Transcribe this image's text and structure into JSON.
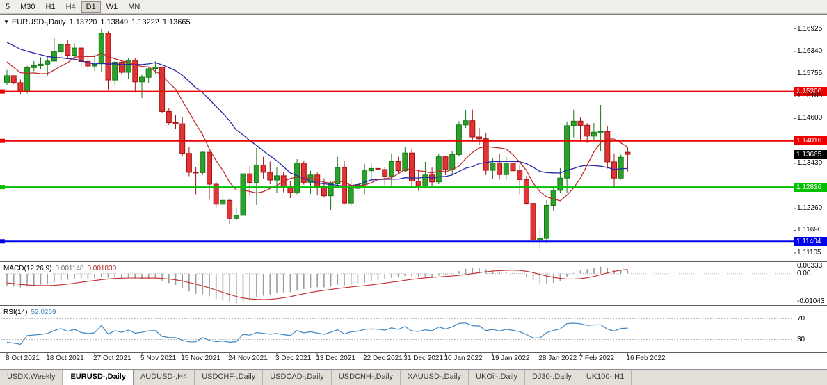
{
  "toolbar": {
    "timeframes": [
      {
        "label": "5",
        "active": false
      },
      {
        "label": "M30",
        "active": false
      },
      {
        "label": "H1",
        "active": false
      },
      {
        "label": "H4",
        "active": false
      },
      {
        "label": "D1",
        "active": true
      },
      {
        "label": "W1",
        "active": false
      },
      {
        "label": "MN",
        "active": false
      }
    ]
  },
  "header": {
    "collapse_icon": "▼",
    "symbol": "EURUSD-,Daily",
    "open": "1.13720",
    "high": "1.13849",
    "low": "1.13222",
    "close": "1.13665"
  },
  "price_axis": {
    "labels": [
      {
        "text": "1.16925",
        "value": 1.16925
      },
      {
        "text": "1.16340",
        "value": 1.1634
      },
      {
        "text": "1.15755",
        "value": 1.15755
      },
      {
        "text": "1.15185",
        "value": 1.15185
      },
      {
        "text": "1.14600",
        "value": 1.146
      },
      {
        "text": "1.13430",
        "value": 1.1343
      },
      {
        "text": "1.12260",
        "value": 1.1226
      },
      {
        "text": "1.11690",
        "value": 1.1169
      },
      {
        "text": "1.11105",
        "value": 1.11105
      }
    ]
  },
  "indicators": {
    "macd": {
      "label": "MACD(12,26,9)",
      "value_main": "0.001148",
      "value_signal": "0.001830",
      "axis_max": {
        "text": "0.00333",
        "value": 0.00333
      },
      "axis_zero": {
        "text": "0.00",
        "value": 0
      },
      "axis_min": {
        "text": "-0.01043",
        "value": -0.01043
      },
      "histogram_color": "#9c9c9c",
      "signal_color": "#c22b2b"
    },
    "rsi": {
      "label": "RSI(14)",
      "value": "52.0259",
      "levels": [
        {
          "text": "70",
          "value": 70
        },
        {
          "text": "30",
          "value": 30
        }
      ],
      "line_color": "#3f87c4",
      "scale_max": 92,
      "scale_min": 8
    }
  },
  "chart_data": {
    "type": "candlestick",
    "symbol": "EURUSD-",
    "timeframe": "Daily",
    "colors": {
      "up_fill": "#2ca02c",
      "up_border": "#157815",
      "down_fill": "#e23434",
      "down_border": "#a01212",
      "ma_slow": "#2626a8",
      "ma_fast": "#c22b2b"
    },
    "moving_averages": [
      {
        "type": "sma",
        "period": 20,
        "color_key": "ma_slow"
      },
      {
        "type": "sma",
        "period": 8,
        "color_key": "ma_fast"
      }
    ],
    "warmup_closes_for_indicators": [
      1.1774,
      1.1766,
      1.1752,
      1.1745,
      1.173,
      1.1722,
      1.1724,
      1.171,
      1.17,
      1.1688,
      1.1692,
      1.17,
      1.1684,
      1.167,
      1.1664,
      1.1672,
      1.169,
      1.17,
      1.1668,
      1.164,
      1.1604,
      1.159,
      1.162,
      1.1603,
      1.156
    ],
    "candles": [
      [
        1.1552,
        1.1586,
        1.1546,
        1.1571
      ],
      [
        1.1571,
        1.1572,
        1.1549,
        1.1553
      ],
      [
        1.1553,
        1.1561,
        1.1524,
        1.153
      ],
      [
        1.153,
        1.1597,
        1.1525,
        1.1592
      ],
      [
        1.1592,
        1.1609,
        1.1583,
        1.1597
      ],
      [
        1.1597,
        1.1619,
        1.1588,
        1.1601
      ],
      [
        1.1601,
        1.1622,
        1.1571,
        1.1609
      ],
      [
        1.1609,
        1.167,
        1.1608,
        1.1633
      ],
      [
        1.1633,
        1.1659,
        1.1617,
        1.1652
      ],
      [
        1.1652,
        1.1665,
        1.1616,
        1.1624
      ],
      [
        1.1624,
        1.1656,
        1.162,
        1.1643
      ],
      [
        1.1643,
        1.1647,
        1.159,
        1.1608
      ],
      [
        1.1608,
        1.1626,
        1.1585,
        1.1596
      ],
      [
        1.1596,
        1.1626,
        1.1584,
        1.1602
      ],
      [
        1.1602,
        1.1692,
        1.1582,
        1.1681
      ],
      [
        1.1681,
        1.1686,
        1.1535,
        1.156
      ],
      [
        1.156,
        1.1609,
        1.1545,
        1.1606
      ],
      [
        1.1606,
        1.1612,
        1.1575,
        1.158
      ],
      [
        1.158,
        1.1616,
        1.1562,
        1.1611
      ],
      [
        1.1611,
        1.1617,
        1.1527,
        1.1555
      ],
      [
        1.1555,
        1.1573,
        1.1513,
        1.1567
      ],
      [
        1.1567,
        1.1594,
        1.1551,
        1.1589
      ],
      [
        1.1589,
        1.1608,
        1.1576,
        1.1593
      ],
      [
        1.1593,
        1.1595,
        1.1474,
        1.1478
      ],
      [
        1.1478,
        1.1487,
        1.1443,
        1.1449
      ],
      [
        1.1449,
        1.1468,
        1.1433,
        1.1446
      ],
      [
        1.1446,
        1.1464,
        1.1361,
        1.1369
      ],
      [
        1.1369,
        1.1386,
        1.131,
        1.132
      ],
      [
        1.132,
        1.1333,
        1.1263,
        1.1319
      ],
      [
        1.1319,
        1.1374,
        1.1313,
        1.1372
      ],
      [
        1.1372,
        1.1374,
        1.1249,
        1.1289
      ],
      [
        1.1289,
        1.1296,
        1.1226,
        1.1237
      ],
      [
        1.1237,
        1.1275,
        1.1226,
        1.1247
      ],
      [
        1.1247,
        1.1252,
        1.1186,
        1.12
      ],
      [
        1.12,
        1.1229,
        1.1196,
        1.1208
      ],
      [
        1.1208,
        1.1323,
        1.1206,
        1.1316
      ],
      [
        1.1316,
        1.1336,
        1.1258,
        1.1293
      ],
      [
        1.1293,
        1.1383,
        1.1235,
        1.1339
      ],
      [
        1.1339,
        1.136,
        1.1304,
        1.132
      ],
      [
        1.132,
        1.1348,
        1.1289,
        1.13
      ],
      [
        1.13,
        1.1334,
        1.1267,
        1.1311
      ],
      [
        1.1311,
        1.132,
        1.1268,
        1.1284
      ],
      [
        1.1284,
        1.1297,
        1.1253,
        1.1267
      ],
      [
        1.1267,
        1.1354,
        1.1263,
        1.1344
      ],
      [
        1.1344,
        1.135,
        1.1288,
        1.1294
      ],
      [
        1.1294,
        1.1324,
        1.1264,
        1.1313
      ],
      [
        1.1313,
        1.1319,
        1.126,
        1.1283
      ],
      [
        1.1283,
        1.1304,
        1.1254,
        1.1259
      ],
      [
        1.1259,
        1.1296,
        1.1222,
        1.129
      ],
      [
        1.129,
        1.136,
        1.1281,
        1.1332
      ],
      [
        1.1332,
        1.1349,
        1.1236,
        1.124
      ],
      [
        1.124,
        1.1304,
        1.1234,
        1.1278
      ],
      [
        1.1278,
        1.1295,
        1.1262,
        1.1288
      ],
      [
        1.1288,
        1.1342,
        1.1263,
        1.1324
      ],
      [
        1.1324,
        1.1344,
        1.13,
        1.133
      ],
      [
        1.133,
        1.1336,
        1.1308,
        1.1327
      ],
      [
        1.1327,
        1.1333,
        1.1287,
        1.131
      ],
      [
        1.131,
        1.1369,
        1.1286,
        1.1348
      ],
      [
        1.1348,
        1.136,
        1.1316,
        1.1324
      ],
      [
        1.1324,
        1.1386,
        1.1321,
        1.137
      ],
      [
        1.137,
        1.1379,
        1.1279,
        1.1297
      ],
      [
        1.1297,
        1.1323,
        1.1272,
        1.1285
      ],
      [
        1.1285,
        1.1347,
        1.128,
        1.1313
      ],
      [
        1.1313,
        1.1332,
        1.1285,
        1.1295
      ],
      [
        1.1295,
        1.1367,
        1.1289,
        1.136
      ],
      [
        1.136,
        1.1362,
        1.1313,
        1.1328
      ],
      [
        1.1328,
        1.1374,
        1.1314,
        1.1366
      ],
      [
        1.1366,
        1.1453,
        1.1361,
        1.1443
      ],
      [
        1.1443,
        1.1482,
        1.1435,
        1.1454
      ],
      [
        1.1454,
        1.1483,
        1.1398,
        1.1412
      ],
      [
        1.1412,
        1.1435,
        1.1392,
        1.1407
      ],
      [
        1.1407,
        1.1422,
        1.1313,
        1.1325
      ],
      [
        1.1325,
        1.1357,
        1.1302,
        1.1344
      ],
      [
        1.1344,
        1.1369,
        1.1301,
        1.1314
      ],
      [
        1.1314,
        1.136,
        1.13,
        1.1344
      ],
      [
        1.1344,
        1.1349,
        1.129,
        1.1324
      ],
      [
        1.1324,
        1.134,
        1.1263,
        1.1301
      ],
      [
        1.1301,
        1.131,
        1.1235,
        1.1239
      ],
      [
        1.1239,
        1.1246,
        1.1131,
        1.1144
      ],
      [
        1.1144,
        1.1174,
        1.1121,
        1.1148
      ],
      [
        1.1148,
        1.1248,
        1.1135,
        1.1234
      ],
      [
        1.1234,
        1.1284,
        1.1221,
        1.1273
      ],
      [
        1.1273,
        1.1331,
        1.1266,
        1.1305
      ],
      [
        1.1305,
        1.1452,
        1.1266,
        1.1441
      ],
      [
        1.1441,
        1.1483,
        1.1411,
        1.1453
      ],
      [
        1.1453,
        1.1462,
        1.1399,
        1.1442
      ],
      [
        1.1442,
        1.1448,
        1.1396,
        1.1414
      ],
      [
        1.1414,
        1.1448,
        1.1403,
        1.1424
      ],
      [
        1.1424,
        1.1495,
        1.1375,
        1.1426
      ],
      [
        1.1426,
        1.1441,
        1.133,
        1.1347
      ],
      [
        1.1347,
        1.1369,
        1.128,
        1.1305
      ],
      [
        1.1305,
        1.1366,
        1.1301,
        1.1359
      ],
      [
        1.1372,
        1.13849,
        1.13222,
        1.13665
      ]
    ],
    "hlines": [
      {
        "label": "1.15300",
        "value": 1.153,
        "color": "#ee0000"
      },
      {
        "label": "1.14016",
        "value": 1.14016,
        "color": "#ee0000"
      },
      {
        "label": "1.12816",
        "value": 1.12816,
        "color": "#00c000"
      },
      {
        "label": "1.11404",
        "value": 1.11404,
        "color": "#0000e8"
      }
    ],
    "current_price": {
      "label": "1.13665",
      "value": 1.13665,
      "badge_color": "#000000"
    },
    "date_labels": [
      {
        "text": "8 Oct 2021",
        "index": 0
      },
      {
        "text": "18 Oct 2021",
        "index": 6
      },
      {
        "text": "27 Oct 2021",
        "index": 13
      },
      {
        "text": "5 Nov 2021",
        "index": 20
      },
      {
        "text": "15 Nov 2021",
        "index": 26
      },
      {
        "text": "24 Nov 2021",
        "index": 33
      },
      {
        "text": "3 Dec 2021",
        "index": 40
      },
      {
        "text": "13 Dec 2021",
        "index": 46
      },
      {
        "text": "22 Dec 2021",
        "index": 53
      },
      {
        "text": "31 Dec 2021",
        "index": 59
      },
      {
        "text": "10 Jan 2022",
        "index": 65
      },
      {
        "text": "19 Jan 2022",
        "index": 72
      },
      {
        "text": "28 Jan 2022",
        "index": 79
      },
      {
        "text": "7 Feb 2022",
        "index": 85
      },
      {
        "text": "16 Feb 2022",
        "index": 92
      }
    ]
  },
  "tabs": {
    "items": [
      {
        "label": "USDX,Weekly",
        "active": false
      },
      {
        "label": "EURUSD-,Daily",
        "active": true
      },
      {
        "label": "AUDUSD-,H4",
        "active": false
      },
      {
        "label": "USDCHF-,Daily",
        "active": false
      },
      {
        "label": "USDCAD-,Daily",
        "active": false
      },
      {
        "label": "USDCNH-,Daily",
        "active": false
      },
      {
        "label": "XAUUSD-,Daily",
        "active": false
      },
      {
        "label": "UKOil-,Daily",
        "active": false
      },
      {
        "label": "DJ30-,Daily",
        "active": false
      },
      {
        "label": "UK100-,H1",
        "active": false
      }
    ]
  }
}
